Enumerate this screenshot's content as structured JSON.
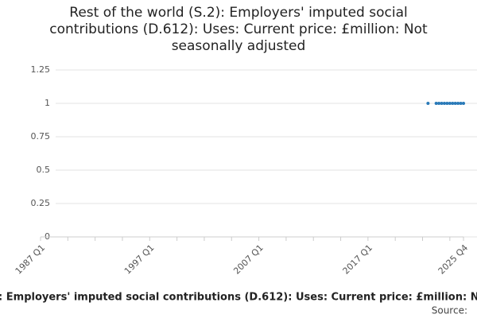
{
  "chart_data": {
    "type": "scatter",
    "title": "Rest of the world (S.2): Employers' imputed social contributions (D.612): Uses: Current price: £million: Not seasonally adjusted",
    "source": "Source:",
    "categories": [
      "1987 Q1",
      null,
      null,
      null,
      null,
      null,
      null,
      null,
      null,
      null,
      null,
      null,
      null,
      null,
      null,
      null,
      null,
      null,
      null,
      null,
      null,
      null,
      null,
      null,
      null,
      null,
      null,
      null,
      null,
      null,
      null,
      null,
      null,
      null,
      null,
      null,
      null,
      null,
      null,
      null,
      "1997 Q1",
      null,
      null,
      null,
      null,
      null,
      null,
      null,
      null,
      null,
      null,
      null,
      null,
      null,
      null,
      null,
      null,
      null,
      null,
      null,
      null,
      null,
      null,
      null,
      null,
      null,
      null,
      null,
      null,
      null,
      null,
      null,
      null,
      null,
      null,
      null,
      null,
      null,
      null,
      null,
      "2007 Q1",
      null,
      null,
      null,
      null,
      null,
      null,
      null,
      null,
      null,
      null,
      null,
      null,
      null,
      null,
      null,
      null,
      null,
      null,
      null,
      null,
      null,
      null,
      null,
      null,
      null,
      null,
      null,
      null,
      null,
      null,
      null,
      null,
      null,
      null,
      null,
      null,
      null,
      null,
      null,
      "2017 Q1",
      null,
      null,
      null,
      null,
      null,
      null,
      null,
      null,
      null,
      null,
      null,
      null,
      null,
      null,
      null,
      null,
      null,
      null,
      null,
      null,
      null,
      null,
      null,
      null,
      null,
      null,
      null,
      null,
      null,
      null,
      null,
      null,
      null,
      null,
      "2025 Q4"
    ],
    "values": [
      null,
      null,
      null,
      null,
      null,
      null,
      null,
      null,
      null,
      null,
      null,
      null,
      null,
      null,
      null,
      null,
      null,
      null,
      null,
      null,
      null,
      null,
      null,
      null,
      null,
      null,
      null,
      null,
      null,
      null,
      null,
      null,
      null,
      null,
      null,
      null,
      null,
      null,
      null,
      null,
      null,
      null,
      null,
      null,
      null,
      null,
      null,
      null,
      null,
      null,
      null,
      null,
      null,
      null,
      null,
      null,
      null,
      null,
      null,
      null,
      null,
      null,
      null,
      null,
      null,
      null,
      null,
      null,
      null,
      null,
      null,
      null,
      null,
      null,
      null,
      null,
      null,
      null,
      null,
      null,
      null,
      null,
      null,
      null,
      null,
      null,
      null,
      null,
      null,
      null,
      null,
      null,
      null,
      null,
      null,
      null,
      null,
      null,
      null,
      null,
      null,
      null,
      null,
      null,
      null,
      null,
      null,
      null,
      null,
      null,
      null,
      null,
      null,
      null,
      null,
      null,
      null,
      null,
      null,
      null,
      null,
      null,
      null,
      null,
      null,
      null,
      null,
      null,
      null,
      null,
      null,
      null,
      null,
      null,
      null,
      null,
      null,
      null,
      null,
      null,
      null,
      null,
      1,
      null,
      null,
      1,
      1,
      1,
      1,
      1,
      1,
      1,
      1,
      1,
      1,
      1
    ],
    "color": "#2a7ab8",
    "ylim": [
      0,
      1.25
    ],
    "yticks": [
      0,
      0.25,
      0.5,
      0.75,
      1,
      1.25
    ],
    "grid": true
  }
}
